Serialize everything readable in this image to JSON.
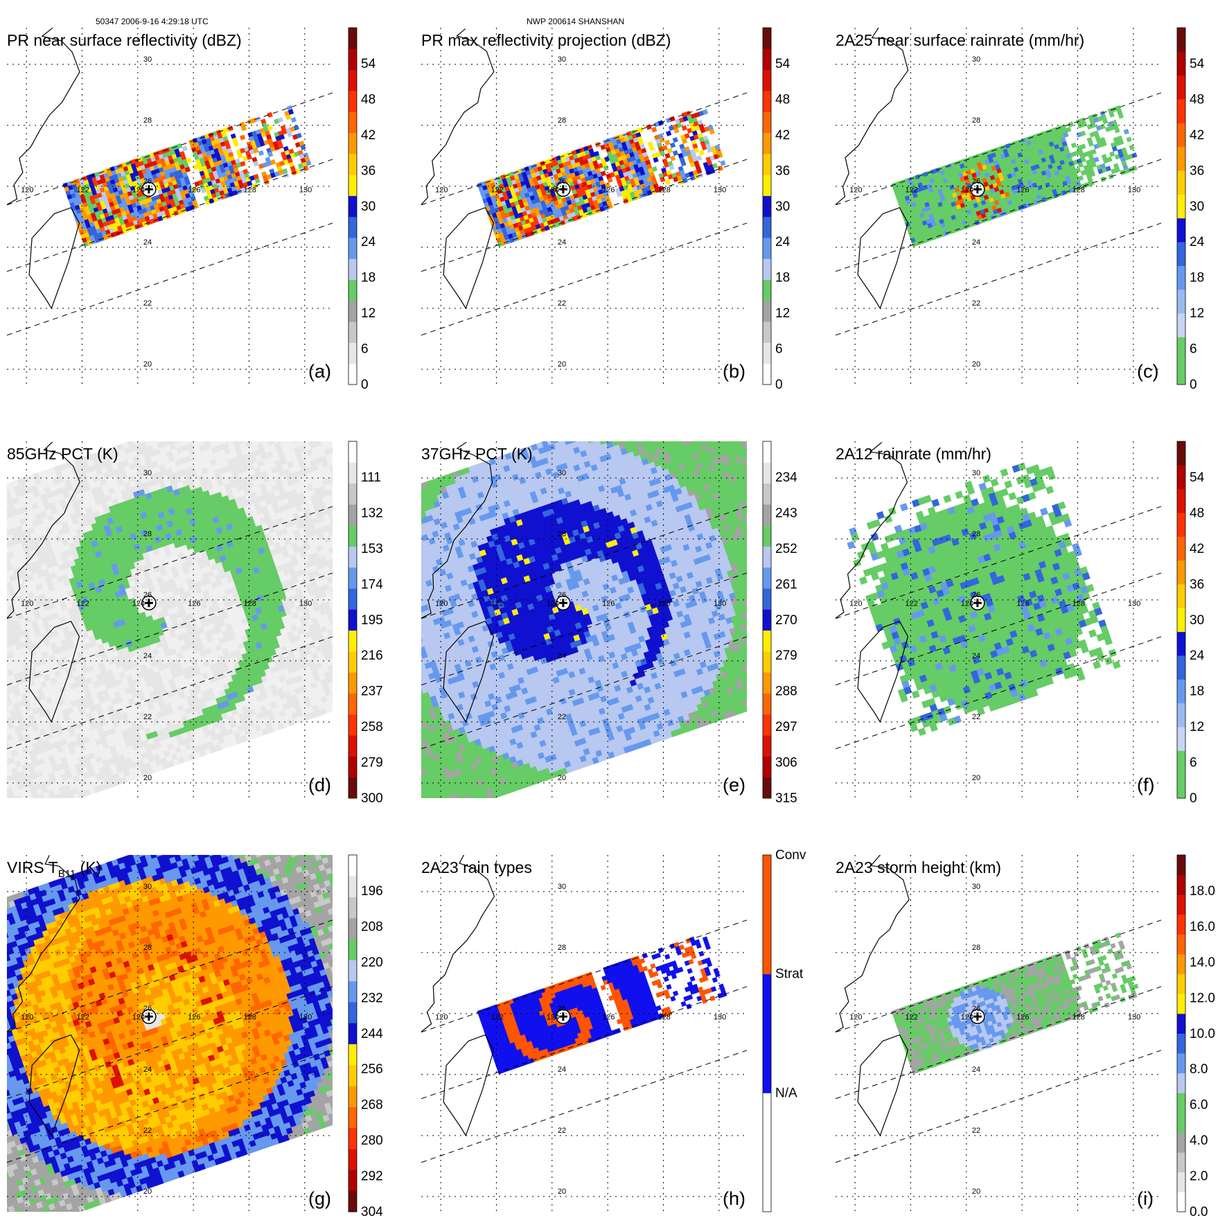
{
  "header": {
    "left": "50347 2006-9-16 4:29:18 UTC",
    "center": "NWP 200614 SHANSHAN"
  },
  "chart_data": [
    {
      "id": "a",
      "type": "heatmap",
      "title": "PR near surface reflectivity (dBZ)",
      "label": "(a)",
      "field": "swath",
      "pattern": "rings",
      "colorbar": {
        "ticks": [
          "54",
          "48",
          "42",
          "36",
          "30",
          "24",
          "18",
          "12",
          "6",
          "0"
        ],
        "colors": [
          "#ffffff",
          "#e6e6e6",
          "#c8c8c8",
          "#a4a4a4",
          "#66cc66",
          "#b8c8f0",
          "#6699ee",
          "#3366dd",
          "#1010d0",
          "#ffee00",
          "#ffcc00",
          "#ff9900",
          "#ff6600",
          "#ff3300",
          "#dd1100",
          "#b00000",
          "#6b0a0a"
        ]
      },
      "lon_labels": [
        "120",
        "122",
        "124",
        "126",
        "128",
        "130"
      ],
      "lat_labels": [
        "30",
        "28",
        "26",
        "24",
        "22",
        "20"
      ]
    },
    {
      "id": "b",
      "type": "heatmap",
      "title": "PR max reflectivity projection (dBZ)",
      "label": "(b)",
      "field": "swath",
      "pattern": "rings",
      "colorbar": {
        "ticks": [
          "54",
          "48",
          "42",
          "36",
          "30",
          "24",
          "18",
          "12",
          "6",
          "0"
        ],
        "colors": [
          "#ffffff",
          "#e6e6e6",
          "#c8c8c8",
          "#a4a4a4",
          "#66cc66",
          "#b8c8f0",
          "#6699ee",
          "#3366dd",
          "#1010d0",
          "#ffee00",
          "#ffcc00",
          "#ff9900",
          "#ff6600",
          "#ff3300",
          "#dd1100",
          "#b00000",
          "#6b0a0a"
        ]
      },
      "lon_labels": [
        "120",
        "122",
        "124",
        "126",
        "128",
        "130"
      ],
      "lat_labels": [
        "30",
        "28",
        "26",
        "24",
        "22",
        "20"
      ]
    },
    {
      "id": "c",
      "type": "heatmap",
      "title": "2A25 near surface rainrate (mm/hr)",
      "label": "(c)",
      "field": "swath",
      "pattern": "green",
      "colorbar": {
        "ticks": [
          "54",
          "48",
          "42",
          "36",
          "30",
          "24",
          "18",
          "12",
          "6",
          "0"
        ],
        "colors": [
          "#66cc66",
          "#66cc66",
          "#c8d4f4",
          "#99bbf0",
          "#6699ee",
          "#3366dd",
          "#1010d0",
          "#ffee00",
          "#ffcc00",
          "#ff9900",
          "#ff6600",
          "#ff3300",
          "#dd1100",
          "#b00000",
          "#6b0a0a"
        ]
      },
      "lon_labels": [
        "120",
        "122",
        "124",
        "126",
        "128",
        "130"
      ],
      "lat_labels": [
        "30",
        "28",
        "26",
        "24",
        "22",
        "20"
      ]
    },
    {
      "id": "d",
      "type": "heatmap",
      "title": "85GHz PCT (K)",
      "label": "(d)",
      "field": "wide",
      "pattern": "gray",
      "colorbar": {
        "ticks": [
          "111",
          "132",
          "153",
          "174",
          "195",
          "216",
          "237",
          "258",
          "279",
          "300"
        ],
        "colors": [
          "#6b0a0a",
          "#b00000",
          "#dd1100",
          "#ff3300",
          "#ff6600",
          "#ff9900",
          "#ffcc00",
          "#ffee00",
          "#1010d0",
          "#3366dd",
          "#6699ee",
          "#b8c8f0",
          "#66cc66",
          "#a4a4a4",
          "#c8c8c8",
          "#e6e6e6",
          "#ffffff"
        ]
      },
      "lon_labels": [
        "120",
        "122",
        "124",
        "126",
        "128",
        "130"
      ],
      "lat_labels": [
        "30",
        "28",
        "26",
        "24",
        "22",
        "20"
      ]
    },
    {
      "id": "e",
      "type": "heatmap",
      "title": "37GHz PCT (K)",
      "label": "(e)",
      "field": "wide",
      "pattern": "blue",
      "colorbar": {
        "ticks": [
          "234",
          "243",
          "252",
          "261",
          "270",
          "279",
          "288",
          "297",
          "306",
          "315"
        ],
        "colors": [
          "#6b0a0a",
          "#b00000",
          "#dd1100",
          "#ff3300",
          "#ff6600",
          "#ff9900",
          "#ffcc00",
          "#ffee00",
          "#1010d0",
          "#3366dd",
          "#6699ee",
          "#b8c8f0",
          "#66cc66",
          "#a4a4a4",
          "#c8c8c8",
          "#e6e6e6",
          "#ffffff"
        ]
      },
      "lon_labels": [
        "120",
        "122",
        "124",
        "126",
        "128",
        "130"
      ],
      "lat_labels": [
        "30",
        "28",
        "26",
        "24",
        "22",
        "20"
      ]
    },
    {
      "id": "f",
      "type": "heatmap",
      "title": "2A12 rainrate (mm/hr)",
      "label": "(f)",
      "field": "tmi",
      "pattern": "green",
      "colorbar": {
        "ticks": [
          "54",
          "48",
          "42",
          "36",
          "30",
          "24",
          "18",
          "12",
          "6",
          "0"
        ],
        "colors": [
          "#66cc66",
          "#66cc66",
          "#c8d4f4",
          "#99bbf0",
          "#6699ee",
          "#3366dd",
          "#1010d0",
          "#ffee00",
          "#ffcc00",
          "#ff9900",
          "#ff6600",
          "#ff3300",
          "#dd1100",
          "#b00000",
          "#6b0a0a"
        ]
      },
      "lon_labels": [
        "120",
        "122",
        "124",
        "126",
        "128",
        "130"
      ],
      "lat_labels": [
        "30",
        "28",
        "26",
        "24",
        "22",
        "20"
      ]
    },
    {
      "id": "g",
      "type": "heatmap",
      "title": "VIRS T",
      "title_sub": "B11",
      "title_tail": " (K)",
      "label": "(g)",
      "field": "wide",
      "pattern": "virs",
      "colorbar": {
        "ticks": [
          "196",
          "208",
          "220",
          "232",
          "244",
          "256",
          "268",
          "280",
          "292",
          "304"
        ],
        "colors": [
          "#6b0a0a",
          "#b00000",
          "#dd1100",
          "#ff3300",
          "#ff6600",
          "#ff9900",
          "#ffcc00",
          "#ffee00",
          "#1010d0",
          "#3366dd",
          "#6699ee",
          "#b8c8f0",
          "#66cc66",
          "#a4a4a4",
          "#c8c8c8",
          "#e6e6e6",
          "#ffffff"
        ]
      },
      "lon_labels": [
        "120",
        "122",
        "124",
        "126",
        "128",
        "130"
      ],
      "lat_labels": [
        "30",
        "28",
        "26",
        "24",
        "22",
        "20"
      ]
    },
    {
      "id": "h",
      "type": "heatmap",
      "title": "2A23 rain types",
      "label": "(h)",
      "field": "swath",
      "pattern": "raintype",
      "colorbar": {
        "ticks": [
          "Conv",
          "Strat",
          "N/A"
        ],
        "categorical": true,
        "colors": [
          "#ffffff",
          "#1010ee",
          "#ff5500"
        ]
      },
      "lon_labels": [
        "120",
        "122",
        "124",
        "126",
        "128",
        "130"
      ],
      "lat_labels": [
        "30",
        "28",
        "26",
        "24",
        "22",
        "20"
      ]
    },
    {
      "id": "i",
      "type": "heatmap",
      "title": "2A23 storm height (km)",
      "label": "(i)",
      "field": "swath",
      "pattern": "height",
      "colorbar": {
        "ticks": [
          "18.0",
          "16.0",
          "14.0",
          "12.0",
          "10.0",
          "8.0",
          "6.0",
          "4.0",
          "2.0",
          "0.0"
        ],
        "colors": [
          "#ffffff",
          "#e6e6e6",
          "#c8c8c8",
          "#a4a4a4",
          "#66cc66",
          "#66cc66",
          "#b8c8f0",
          "#6699ee",
          "#3366dd",
          "#1010d0",
          "#ffee00",
          "#ffcc00",
          "#ff9900",
          "#ff6600",
          "#ff3300",
          "#dd1100",
          "#b00000",
          "#6b0a0a"
        ]
      },
      "lon_labels": [
        "120",
        "122",
        "124",
        "126",
        "128",
        "130"
      ],
      "lat_labels": [
        "30",
        "28",
        "26",
        "24",
        "22",
        "20"
      ]
    }
  ]
}
